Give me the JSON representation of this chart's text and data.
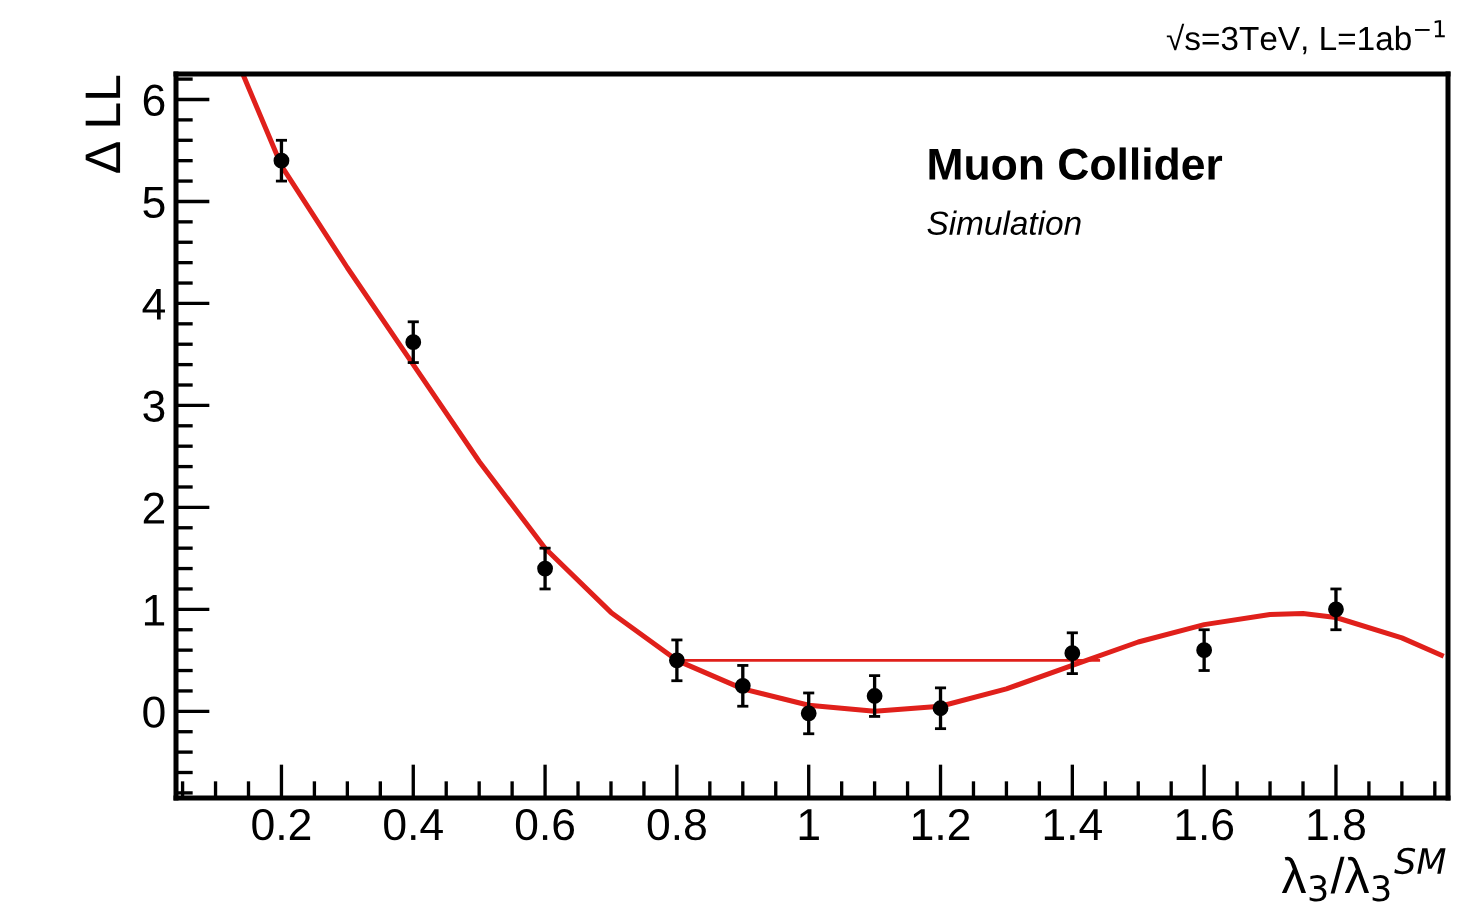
{
  "chart_data": {
    "type": "scatter",
    "xlabel": "λ$_{3}$/λ$_{3}$$^{SM}$",
    "ylabel": "Δ LL",
    "annotations": [
      "√s=3TeV, L=1ab$^{−1}$",
      "Muon Collider",
      "Simulation"
    ],
    "xlim": [
      0.04,
      1.97
    ],
    "ylim": [
      -0.85,
      6.25
    ],
    "xticks": [
      0.2,
      0.4,
      0.6,
      0.8,
      1,
      1.2,
      1.4,
      1.6,
      1.8
    ],
    "yticks": [
      0,
      1,
      2,
      3,
      4,
      5,
      6
    ],
    "grid": false,
    "legend": false,
    "series": [
      {
        "type": "line",
        "color": "#e0201b",
        "marker": "none",
        "x": [
          0.142,
          0.2,
          0.3,
          0.4,
          0.5,
          0.6,
          0.7,
          0.8,
          0.9,
          1.0,
          1.1,
          1.2,
          1.3,
          1.4,
          1.5,
          1.6,
          1.7,
          1.75,
          1.8,
          1.9,
          1.96
        ],
        "values": [
          6.24,
          5.35,
          4.35,
          3.4,
          2.45,
          1.6,
          0.97,
          0.5,
          0.22,
          0.06,
          0.0,
          0.05,
          0.22,
          0.45,
          0.68,
          0.85,
          0.95,
          0.96,
          0.92,
          0.72,
          0.55
        ]
      },
      {
        "type": "line",
        "color": "#e0201b",
        "marker": "none",
        "x": [
          0.8,
          1.44
        ],
        "values": [
          0.5,
          0.5
        ]
      },
      {
        "color": "#000000",
        "marker": "circle",
        "x": [
          0.2,
          0.4,
          0.6,
          0.8,
          0.9,
          1.0,
          1.1,
          1.2,
          1.4,
          1.6,
          1.8
        ],
        "values": [
          5.4,
          3.62,
          1.4,
          0.5,
          0.25,
          -0.02,
          0.15,
          0.03,
          0.57,
          0.6,
          1.0
        ],
        "errors": [
          0.2,
          0.2,
          0.2,
          0.2,
          0.2,
          0.2,
          0.2,
          0.2,
          0.2,
          0.2,
          0.2
        ]
      }
    ]
  }
}
